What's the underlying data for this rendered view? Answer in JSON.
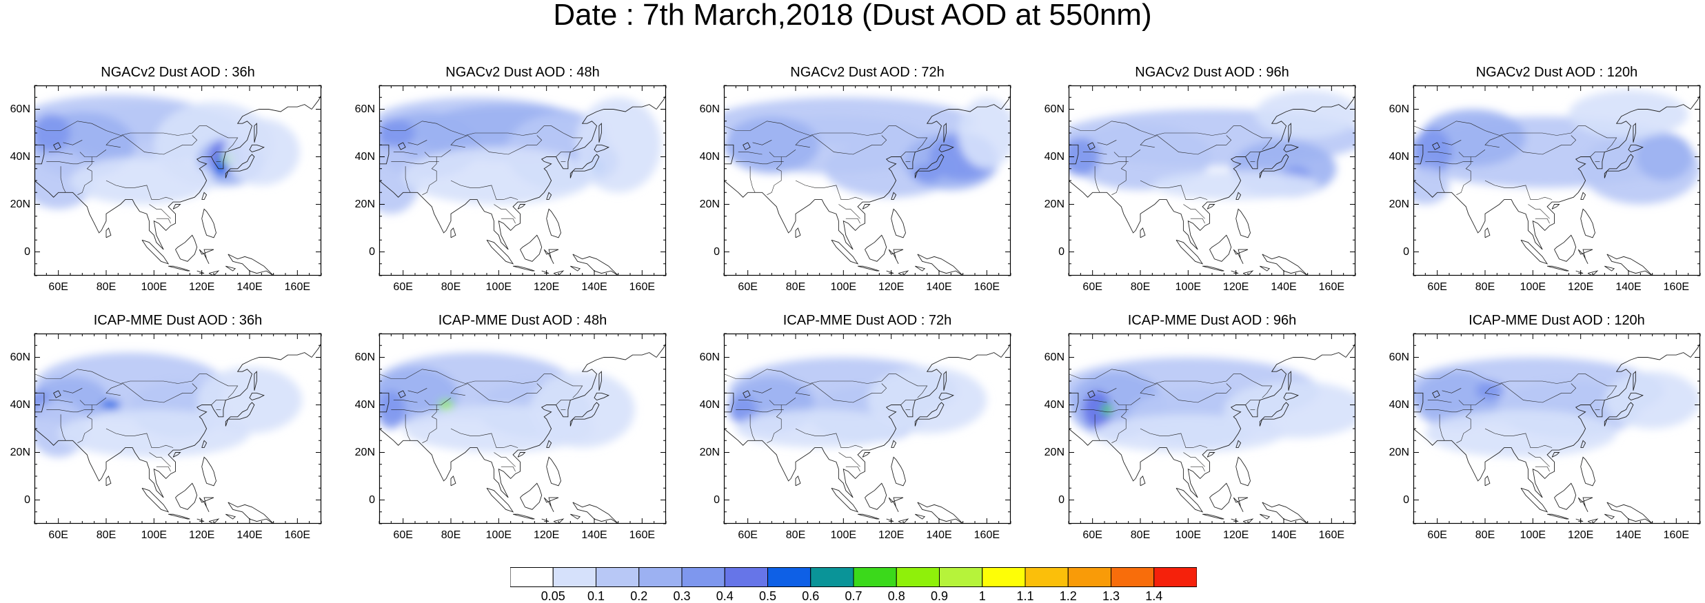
{
  "title": "Date : 7th March,2018 (Dust AOD at 550nm)",
  "lat_labels": [
    "60N",
    "40N",
    "20N",
    "0"
  ],
  "lat_values": [
    60,
    40,
    20,
    0
  ],
  "lon_labels": [
    "60E",
    "80E",
    "100E",
    "120E",
    "140E",
    "160E"
  ],
  "lon_values": [
    60,
    80,
    100,
    120,
    140,
    160
  ],
  "map_extent": {
    "lon_min": 50,
    "lon_max": 170,
    "lat_min": -10,
    "lat_max": 70
  },
  "panels": [
    {
      "title": "NGACv2 Dust AOD : 36h",
      "model": "NGACv2",
      "lead": "36h"
    },
    {
      "title": "NGACv2 Dust AOD : 48h",
      "model": "NGACv2",
      "lead": "48h"
    },
    {
      "title": "NGACv2 Dust AOD : 72h",
      "model": "NGACv2",
      "lead": "72h"
    },
    {
      "title": "NGACv2 Dust AOD : 96h",
      "model": "NGACv2",
      "lead": "96h"
    },
    {
      "title": "NGACv2 Dust AOD : 120h",
      "model": "NGACv2",
      "lead": "120h"
    },
    {
      "title": "ICAP-MME Dust AOD : 36h",
      "model": "ICAP-MME",
      "lead": "36h"
    },
    {
      "title": "ICAP-MME Dust AOD : 48h",
      "model": "ICAP-MME",
      "lead": "48h"
    },
    {
      "title": "ICAP-MME Dust AOD : 72h",
      "model": "ICAP-MME",
      "lead": "72h"
    },
    {
      "title": "ICAP-MME Dust AOD : 96h",
      "model": "ICAP-MME",
      "lead": "96h"
    },
    {
      "title": "ICAP-MME Dust AOD : 120h",
      "model": "ICAP-MME",
      "lead": "120h"
    }
  ],
  "colorbar": {
    "labels": [
      "0.05",
      "0.1",
      "0.2",
      "0.3",
      "0.4",
      "0.5",
      "0.6",
      "0.7",
      "0.8",
      "0.9",
      "1",
      "1.1",
      "1.2",
      "1.3",
      "1.4"
    ],
    "colors": [
      "#ffffff",
      "#d6e1fb",
      "#b8c8f6",
      "#9cb1f2",
      "#7e97ee",
      "#6675e8",
      "#0e60e6",
      "#0a9498",
      "#3bd91b",
      "#8ff00a",
      "#b6f33a",
      "#fefe06",
      "#fbbf0a",
      "#f99b08",
      "#f86d0b",
      "#f5210b"
    ]
  }
}
